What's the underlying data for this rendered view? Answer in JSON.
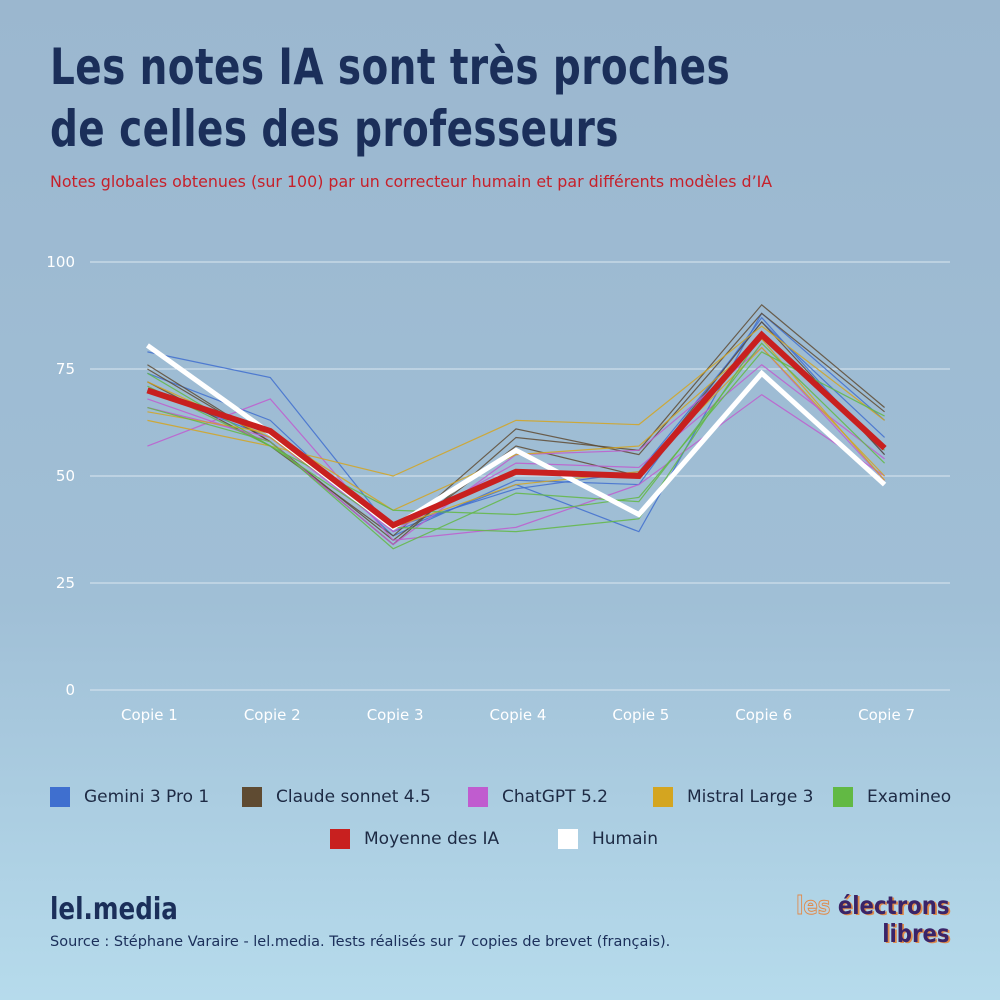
{
  "title_lines": [
    "Les notes IA sont très proches",
    "de celles des professeurs"
  ],
  "subtitle": "Notes globales obtenues (sur 100) par un correcteur humain et par différents modèles d’IA",
  "chart_data": {
    "type": "line",
    "categories": [
      "Copie 1",
      "Copie 2",
      "Copie 3",
      "Copie 4",
      "Copie 5",
      "Copie 6",
      "Copie 7"
    ],
    "yticks": [
      "0",
      "25",
      "50",
      "75",
      "100"
    ],
    "ylim": [
      0,
      100
    ],
    "grid": true,
    "legend_position": "bottom",
    "series": [
      {
        "name": "Gemini 3 Pro 1",
        "color": "#3f6fcf",
        "width": 1.2,
        "runs": [
          [
            79,
            73,
            37,
            48,
            37,
            88,
            63
          ],
          [
            74,
            63,
            36,
            49,
            48,
            87,
            55
          ],
          [
            70,
            59,
            38,
            47,
            51,
            86,
            59
          ]
        ]
      },
      {
        "name": "Claude sonnet 4.5",
        "color": "#5f4b32",
        "width": 1.2,
        "runs": [
          [
            75,
            58,
            34,
            59,
            56,
            90,
            66
          ],
          [
            72,
            57,
            36,
            61,
            55,
            88,
            65
          ],
          [
            76,
            58,
            35,
            57,
            50,
            86,
            55
          ]
        ]
      },
      {
        "name": "ChatGPT 5.2",
        "color": "#c05ccf",
        "width": 1.2,
        "runs": [
          [
            57,
            68,
            35,
            38,
            48,
            69,
            50
          ],
          [
            68,
            58,
            34,
            55,
            56,
            80,
            49
          ],
          [
            66,
            59,
            37,
            53,
            52,
            76,
            54
          ]
        ]
      },
      {
        "name": "Mistral Large 3",
        "color": "#d4a520",
        "width": 1.2,
        "runs": [
          [
            63,
            57,
            50,
            63,
            62,
            85,
            63
          ],
          [
            65,
            60,
            42,
            55,
            57,
            82,
            49
          ],
          [
            72,
            59,
            38,
            48,
            51,
            80,
            50
          ]
        ]
      },
      {
        "name": "Examineo",
        "color": "#62b944",
        "width": 1.2,
        "runs": [
          [
            66,
            58,
            33,
            46,
            44,
            81,
            53
          ],
          [
            74,
            57,
            42,
            41,
            45,
            79,
            64
          ],
          [
            71,
            57,
            38,
            37,
            40,
            83,
            56
          ]
        ]
      },
      {
        "name": "Humain",
        "color": "#ffffff",
        "width": 5,
        "runs": [
          [
            80.5,
            60,
            38,
            56,
            41,
            74,
            48
          ]
        ]
      },
      {
        "name": "Moyenne des IA",
        "color": "#c8201f",
        "width": 6,
        "runs": [
          [
            70,
            60.5,
            38.5,
            51,
            50,
            83,
            56.5
          ]
        ]
      }
    ]
  },
  "legend": [
    {
      "label": "Gemini 3 Pro 1",
      "color": "#3f6fcf"
    },
    {
      "label": "Claude sonnet 4.5",
      "color": "#5f4b32"
    },
    {
      "label": "ChatGPT 5.2",
      "color": "#c05ccf"
    },
    {
      "label": "Mistral Large 3",
      "color": "#d4a520"
    },
    {
      "label": "Examineo",
      "color": "#62b944"
    },
    {
      "label": "Moyenne des IA",
      "color": "#c8201f"
    },
    {
      "label": "Humain",
      "color": "#ffffff"
    }
  ],
  "footer": {
    "brand": "lel.media",
    "source": "Source : Stéphane Varaire - lel.media. Tests réalisés sur 7 copies de brevet (français).",
    "logo_lines": [
      "les électrons",
      "libres"
    ]
  }
}
